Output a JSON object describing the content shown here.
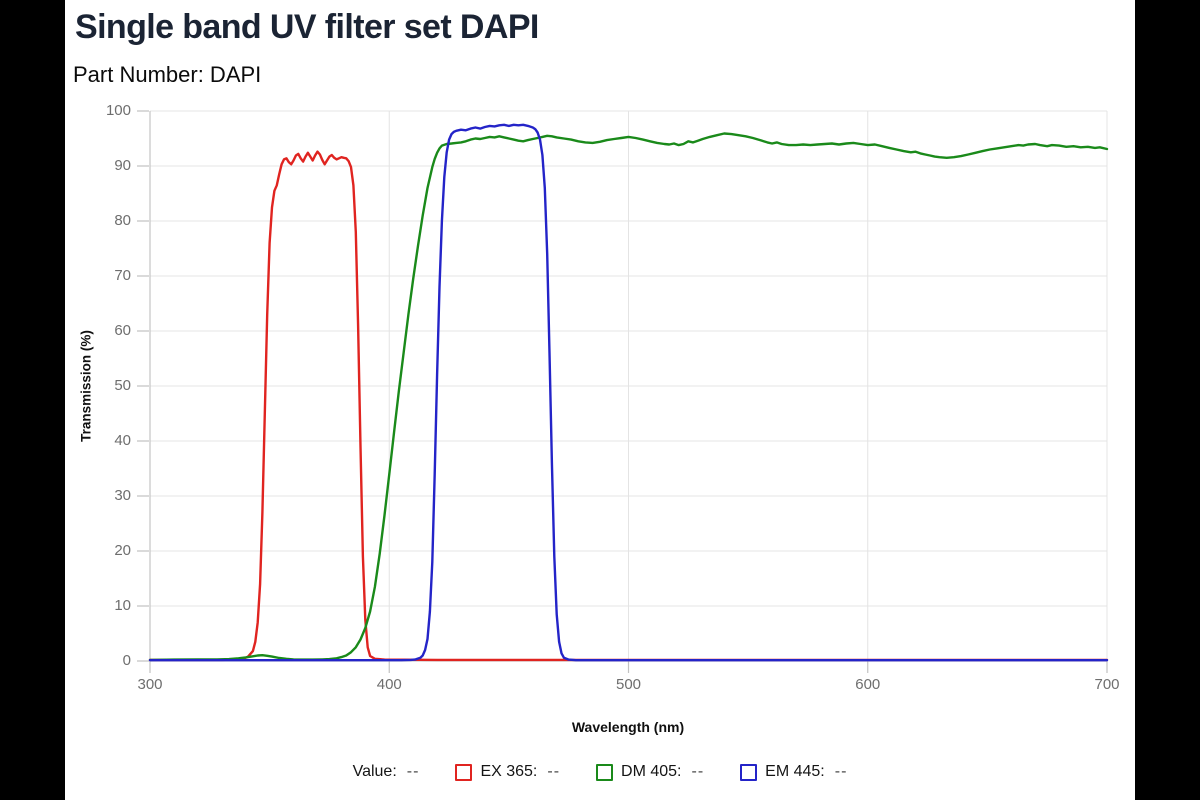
{
  "header": {
    "title": "Single band UV filter set DAPI",
    "part_number": "Part Number: DAPI"
  },
  "chart_data": {
    "type": "line",
    "title": "Single band UV filter set DAPI",
    "subtitle": "Part Number: DAPI",
    "xlabel": "Wavelength (nm)",
    "ylabel": "Transmission (%)",
    "xlim": [
      300,
      700
    ],
    "ylim": [
      0,
      100
    ],
    "x_ticks": [
      300,
      400,
      500,
      600,
      700
    ],
    "y_ticks": [
      0,
      10,
      20,
      30,
      40,
      50,
      60,
      70,
      80,
      90,
      100
    ],
    "grid": true,
    "legend_position": "bottom",
    "colors": {
      "grid": "#e4e4e4",
      "axis": "#c9c9c9",
      "tick": "#c2c2c2",
      "tick_label": "#6e6e6e",
      "title": "#1b2434"
    },
    "series": [
      {
        "name": "EX 365",
        "color": "#e02420",
        "points": [
          [
            300,
            0.2
          ],
          [
            315,
            0.2
          ],
          [
            330,
            0.2
          ],
          [
            336,
            0.3
          ],
          [
            339,
            0.4
          ],
          [
            341,
            0.8
          ],
          [
            343,
            1.8
          ],
          [
            344,
            3.5
          ],
          [
            345,
            7
          ],
          [
            346,
            14
          ],
          [
            347,
            27
          ],
          [
            348,
            45
          ],
          [
            349,
            63
          ],
          [
            350,
            76
          ],
          [
            351,
            82.5
          ],
          [
            352,
            85.5
          ],
          [
            353,
            86.5
          ],
          [
            354,
            88.5
          ],
          [
            355,
            90.3
          ],
          [
            356,
            91.2
          ],
          [
            357,
            91.4
          ],
          [
            358,
            90.7
          ],
          [
            359,
            90.3
          ],
          [
            360,
            91
          ],
          [
            361,
            91.9
          ],
          [
            362,
            92.2
          ],
          [
            363,
            91.4
          ],
          [
            364,
            90.8
          ],
          [
            365,
            91.7
          ],
          [
            366,
            92.4
          ],
          [
            367,
            91.7
          ],
          [
            368,
            91
          ],
          [
            369,
            91.9
          ],
          [
            370,
            92.6
          ],
          [
            371,
            92.1
          ],
          [
            372,
            91.1
          ],
          [
            373,
            90.3
          ],
          [
            374,
            91
          ],
          [
            375,
            91.7
          ],
          [
            376,
            92
          ],
          [
            377,
            91.5
          ],
          [
            378,
            91.2
          ],
          [
            379,
            91.4
          ],
          [
            380,
            91.6
          ],
          [
            381,
            91.5
          ],
          [
            382,
            91.4
          ],
          [
            383,
            90.9
          ],
          [
            384,
            89.8
          ],
          [
            385,
            86.5
          ],
          [
            386,
            78
          ],
          [
            387,
            61
          ],
          [
            388,
            39
          ],
          [
            389,
            19
          ],
          [
            390,
            7.5
          ],
          [
            391,
            2.5
          ],
          [
            392,
            0.9
          ],
          [
            394,
            0.4
          ],
          [
            398,
            0.25
          ],
          [
            420,
            0.2
          ],
          [
            460,
            0.2
          ],
          [
            500,
            0.2
          ],
          [
            540,
            0.2
          ],
          [
            580,
            0.2
          ],
          [
            620,
            0.2
          ],
          [
            660,
            0.2
          ],
          [
            700,
            0.2
          ]
        ]
      },
      {
        "name": "DM 405",
        "color": "#1a8a1a",
        "points": [
          [
            300,
            0.2
          ],
          [
            310,
            0.25
          ],
          [
            320,
            0.3
          ],
          [
            328,
            0.3
          ],
          [
            333,
            0.35
          ],
          [
            337,
            0.5
          ],
          [
            340,
            0.65
          ],
          [
            343,
            0.85
          ],
          [
            345,
            1
          ],
          [
            347,
            1.05
          ],
          [
            349,
            0.95
          ],
          [
            351,
            0.8
          ],
          [
            354,
            0.55
          ],
          [
            357,
            0.4
          ],
          [
            360,
            0.3
          ],
          [
            364,
            0.25
          ],
          [
            368,
            0.25
          ],
          [
            372,
            0.3
          ],
          [
            375,
            0.35
          ],
          [
            378,
            0.5
          ],
          [
            380,
            0.7
          ],
          [
            382,
            1
          ],
          [
            384,
            1.6
          ],
          [
            386,
            2.5
          ],
          [
            388,
            3.9
          ],
          [
            390,
            6
          ],
          [
            392,
            9
          ],
          [
            394,
            13.5
          ],
          [
            396,
            19.5
          ],
          [
            398,
            26.5
          ],
          [
            400,
            34
          ],
          [
            402,
            41.5
          ],
          [
            404,
            49
          ],
          [
            406,
            56
          ],
          [
            408,
            63
          ],
          [
            410,
            69.5
          ],
          [
            412,
            75.5
          ],
          [
            414,
            81
          ],
          [
            416,
            86
          ],
          [
            418,
            89.8
          ],
          [
            419,
            91.3
          ],
          [
            420,
            92.4
          ],
          [
            421,
            93.2
          ],
          [
            422,
            93.7
          ],
          [
            424,
            94
          ],
          [
            426,
            94.1
          ],
          [
            428,
            94.2
          ],
          [
            430,
            94.3
          ],
          [
            432,
            94.5
          ],
          [
            434,
            94.8
          ],
          [
            436,
            95
          ],
          [
            438,
            94.9
          ],
          [
            440,
            95.1
          ],
          [
            442,
            95.3
          ],
          [
            444,
            95.2
          ],
          [
            446,
            95.4
          ],
          [
            448,
            95.2
          ],
          [
            450,
            95
          ],
          [
            452,
            94.8
          ],
          [
            454,
            94.6
          ],
          [
            456,
            94.5
          ],
          [
            458,
            94.7
          ],
          [
            460,
            94.9
          ],
          [
            462,
            95.1
          ],
          [
            464,
            95.3
          ],
          [
            466,
            95.5
          ],
          [
            468,
            95.4
          ],
          [
            470,
            95.2
          ],
          [
            473,
            95
          ],
          [
            476,
            94.8
          ],
          [
            479,
            94.5
          ],
          [
            482,
            94.3
          ],
          [
            485,
            94.2
          ],
          [
            488,
            94.4
          ],
          [
            491,
            94.7
          ],
          [
            494,
            94.9
          ],
          [
            497,
            95.1
          ],
          [
            500,
            95.3
          ],
          [
            503,
            95.1
          ],
          [
            506,
            94.8
          ],
          [
            509,
            94.5
          ],
          [
            512,
            94.2
          ],
          [
            515,
            94
          ],
          [
            517,
            93.9
          ],
          [
            519,
            94.1
          ],
          [
            521,
            93.8
          ],
          [
            523,
            94
          ],
          [
            525,
            94.5
          ],
          [
            527,
            94.3
          ],
          [
            529,
            94.6
          ],
          [
            531,
            94.9
          ],
          [
            534,
            95.3
          ],
          [
            537,
            95.6
          ],
          [
            540,
            95.9
          ],
          [
            543,
            95.8
          ],
          [
            546,
            95.6
          ],
          [
            549,
            95.4
          ],
          [
            552,
            95.1
          ],
          [
            555,
            94.7
          ],
          [
            558,
            94.3
          ],
          [
            560,
            94.1
          ],
          [
            562,
            94.3
          ],
          [
            564,
            94
          ],
          [
            567,
            93.8
          ],
          [
            570,
            93.8
          ],
          [
            573,
            93.9
          ],
          [
            576,
            93.8
          ],
          [
            579,
            93.9
          ],
          [
            582,
            94
          ],
          [
            585,
            94.1
          ],
          [
            588,
            93.9
          ],
          [
            591,
            94.1
          ],
          [
            594,
            94.2
          ],
          [
            597,
            94
          ],
          [
            600,
            93.8
          ],
          [
            603,
            93.9
          ],
          [
            606,
            93.6
          ],
          [
            609,
            93.3
          ],
          [
            612,
            93
          ],
          [
            615,
            92.7
          ],
          [
            618,
            92.5
          ],
          [
            620,
            92.6
          ],
          [
            622,
            92.3
          ],
          [
            624,
            92.1
          ],
          [
            626,
            91.9
          ],
          [
            628,
            91.7
          ],
          [
            630,
            91.6
          ],
          [
            633,
            91.5
          ],
          [
            636,
            91.6
          ],
          [
            639,
            91.8
          ],
          [
            642,
            92.1
          ],
          [
            645,
            92.4
          ],
          [
            648,
            92.7
          ],
          [
            651,
            93
          ],
          [
            654,
            93.2
          ],
          [
            657,
            93.4
          ],
          [
            660,
            93.6
          ],
          [
            663,
            93.8
          ],
          [
            665,
            93.7
          ],
          [
            667,
            93.9
          ],
          [
            670,
            94
          ],
          [
            672,
            93.8
          ],
          [
            675,
            93.6
          ],
          [
            677,
            93.8
          ],
          [
            680,
            93.7
          ],
          [
            683,
            93.5
          ],
          [
            686,
            93.6
          ],
          [
            689,
            93.4
          ],
          [
            692,
            93.5
          ],
          [
            695,
            93.3
          ],
          [
            697,
            93.4
          ],
          [
            700,
            93.1
          ]
        ]
      },
      {
        "name": "EM 445",
        "color": "#2424c8",
        "points": [
          [
            300,
            0.15
          ],
          [
            330,
            0.15
          ],
          [
            360,
            0.15
          ],
          [
            390,
            0.15
          ],
          [
            405,
            0.15
          ],
          [
            409,
            0.2
          ],
          [
            411,
            0.3
          ],
          [
            413,
            0.6
          ],
          [
            414,
            1
          ],
          [
            415,
            2
          ],
          [
            416,
            4
          ],
          [
            417,
            9
          ],
          [
            418,
            18
          ],
          [
            419,
            34
          ],
          [
            420,
            52
          ],
          [
            421,
            68
          ],
          [
            422,
            80
          ],
          [
            423,
            88
          ],
          [
            424,
            92.5
          ],
          [
            425,
            94.8
          ],
          [
            426,
            95.8
          ],
          [
            427,
            96.2
          ],
          [
            428,
            96.4
          ],
          [
            430,
            96.6
          ],
          [
            432,
            96.5
          ],
          [
            434,
            96.8
          ],
          [
            436,
            97
          ],
          [
            438,
            96.8
          ],
          [
            440,
            97.1
          ],
          [
            442,
            97.3
          ],
          [
            444,
            97.2
          ],
          [
            446,
            97.4
          ],
          [
            448,
            97.5
          ],
          [
            450,
            97.3
          ],
          [
            452,
            97.5
          ],
          [
            454,
            97.4
          ],
          [
            456,
            97.5
          ],
          [
            458,
            97.3
          ],
          [
            460,
            97
          ],
          [
            461,
            96.7
          ],
          [
            462,
            96.1
          ],
          [
            463,
            94.8
          ],
          [
            464,
            92
          ],
          [
            465,
            86
          ],
          [
            466,
            74
          ],
          [
            467,
            56
          ],
          [
            468,
            36
          ],
          [
            469,
            19
          ],
          [
            470,
            8.5
          ],
          [
            471,
            3.5
          ],
          [
            472,
            1.4
          ],
          [
            473,
            0.6
          ],
          [
            475,
            0.25
          ],
          [
            478,
            0.15
          ],
          [
            510,
            0.15
          ],
          [
            550,
            0.15
          ],
          [
            590,
            0.15
          ],
          [
            630,
            0.15
          ],
          [
            670,
            0.15
          ],
          [
            700,
            0.15
          ]
        ]
      }
    ]
  },
  "legend": {
    "value_label": "Value:",
    "value_placeholder": "--",
    "items": [
      {
        "label": "EX 365:",
        "value": "--",
        "color": "#e02420"
      },
      {
        "label": "DM 405:",
        "value": "--",
        "color": "#1a8a1a"
      },
      {
        "label": "EM 445:",
        "value": "--",
        "color": "#2424c8"
      }
    ]
  }
}
